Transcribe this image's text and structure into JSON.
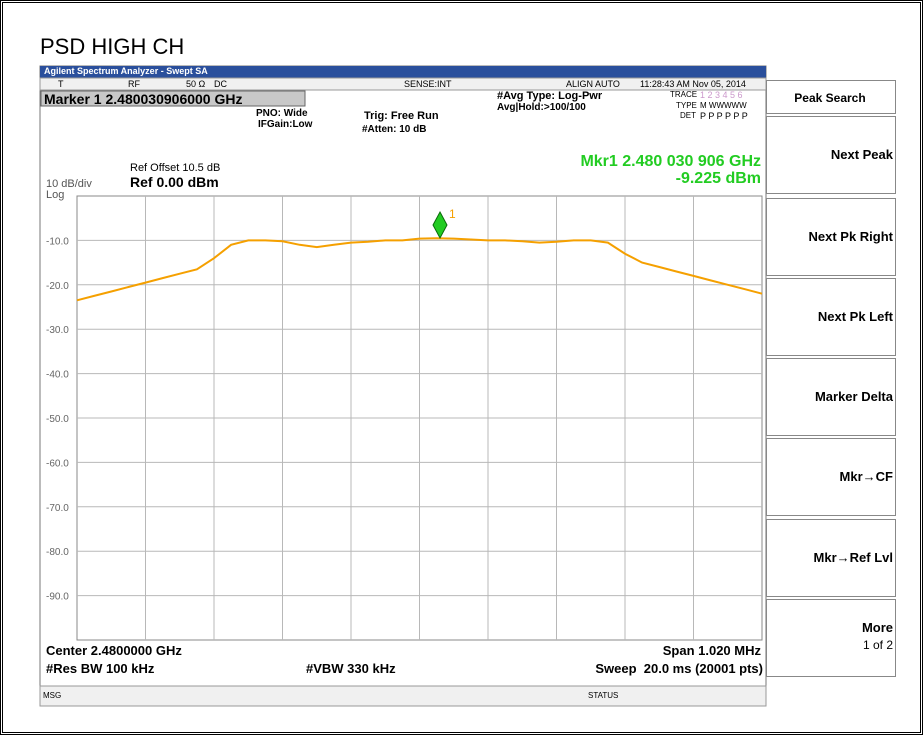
{
  "header": {
    "title": "PSD HIGH CH",
    "app_title": "Agilent Spectrum Analyzer - Swept SA"
  },
  "status_row": {
    "trig": "T",
    "rf": "RF",
    "impedance": "50 Ω",
    "coupling": "DC",
    "sense": "SENSE:INT",
    "align": "ALIGN AUTO",
    "datetime": "11:28:43 AM Nov 05, 2014"
  },
  "settings": {
    "marker": "Marker 1 2.480030906000 GHz",
    "pno": "PNO: Wide",
    "ifgain": "IFGain:Low",
    "trig": "Trig: Free Run",
    "atten": "#Atten: 10 dB",
    "avg_type": "#Avg Type: Log-Pwr",
    "avg_hold": "Avg|Hold:>100/100",
    "trace_label": "TRACE",
    "trace_nums": "1 2 3 4 5 6",
    "type_label": "TYPE",
    "type_vals": "M WWWWW",
    "det_label": "DET",
    "det_vals": "P P P P P P"
  },
  "display": {
    "ref_offset": "Ref Offset 10.5 dB",
    "scale": "10 dB/div",
    "ref": "Ref 0.00 dBm",
    "scale_type": "Log",
    "mkr_freq": "Mkr1 2.480 030 906 GHz",
    "mkr_amp": "-9.225 dBm",
    "marker_label": "1"
  },
  "footer": {
    "center": "Center 2.4800000 GHz",
    "span": "Span 1.020 MHz",
    "rbw": "#Res BW 100 kHz",
    "vbw": "#VBW 330 kHz",
    "sweep": "Sweep  20.0 ms (20001 pts)",
    "msg": "MSG",
    "status": "STATUS"
  },
  "softkeys": {
    "title": "Peak Search",
    "items": [
      "Next Peak",
      "Next Pk Right",
      "Next Pk Left",
      "Marker Delta",
      "Mkr→CF",
      "Mkr→Ref Lvl",
      "More"
    ],
    "more_sub": "1 of 2"
  },
  "chart_data": {
    "type": "line",
    "color": "#f5a000",
    "grid": true,
    "ylim": [
      -100,
      0
    ],
    "yticks": [
      {
        "value": -10,
        "label": "-10.0"
      },
      {
        "value": -20,
        "label": "-20.0"
      },
      {
        "value": -30,
        "label": "-30.0"
      },
      {
        "value": -40,
        "label": "-40.0"
      },
      {
        "value": -50,
        "label": "-50.0"
      },
      {
        "value": -60,
        "label": "-60.0"
      },
      {
        "value": -70,
        "label": "-70.0"
      },
      {
        "value": -80,
        "label": "-80.0"
      },
      {
        "value": -90,
        "label": "-90.0"
      }
    ],
    "values": [
      -23.5,
      -22.5,
      -21.5,
      -20.5,
      -19.5,
      -18.5,
      -17.5,
      -16.5,
      -14,
      -11,
      -10,
      -10,
      -10.2,
      -11,
      -11.5,
      -11,
      -10.5,
      -10.3,
      -10,
      -10,
      -9.6,
      -9.5,
      -9.6,
      -9.8,
      -10,
      -10,
      -10.2,
      -10.5,
      -10.3,
      -10,
      -10,
      -10.5,
      -13,
      -15,
      -16,
      -17,
      -18,
      -19,
      -20,
      -21,
      -22
    ]
  }
}
